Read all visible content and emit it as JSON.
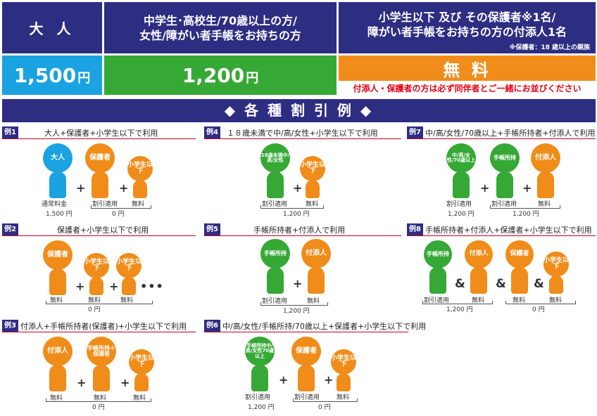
{
  "header": {
    "adult": "大 人",
    "student_line1": "中学生･高校生/70歳以上の方/",
    "student_line2": "女性/障がい者手帳をお持ちの方",
    "child_line1": "小学生以下 及び その保護者※1名/",
    "child_line2": "障がい者手帳をお持ちの方の付添人1名",
    "child_note": "※保護者：18 歳以上の親族"
  },
  "prices": {
    "adult_num": "1,500",
    "adult_unit": "円",
    "student_num": "1,200",
    "student_unit": "円",
    "free": "無 料",
    "free_note": "付添人・保護者の方は必ず同伴者とご一緒にお並びください"
  },
  "banner": "◆ 各 種 割 引 例 ◆",
  "labels": {
    "otona": "大人",
    "hogosha": "保護者",
    "shogakusei": "小学生以下",
    "under18": "18歳未満中/高/女性",
    "chukou70": "中/高/女性/70歳以上",
    "techo": "手帳所持",
    "tsukisoi": "付添人",
    "techo_hogosha": "手帳所持＋保護者",
    "techo_combo": "手帳所持中/高/女性70歳以上",
    "normal_fee": "通常料金",
    "discount": "割引適用",
    "free": "無料",
    "p1500": "1,500 円",
    "p1200": "1,200 円",
    "p0": "0 円",
    "plus": "+",
    "amp": "&",
    "dots": "•••"
  },
  "examples": [
    {
      "tag": "例1",
      "title": "大人+保護者+小学生以下で利用"
    },
    {
      "tag": "例2",
      "title": "保護者+小学生以下で利用"
    },
    {
      "tag": "例3",
      "title": "付添人+手帳所持者(保護者)+小学生以下で利用"
    },
    {
      "tag": "例4",
      "title": "１８歳未満で中/高/女性+小学生以下で利用"
    },
    {
      "tag": "例5",
      "title": "手帳所持者+付添人で利用"
    },
    {
      "tag": "例6",
      "title": "中/高/女性/手帳所持/70歳以上+保護者+小学生以下で利用"
    },
    {
      "tag": "例7",
      "title": "中/高/女性/70歳以上+手帳所持者+付添人で利用"
    },
    {
      "tag": "例8",
      "title": "手帳所持者+付添人+保護者+小学生以下で利用"
    }
  ],
  "colors": {
    "navy": "#2d2d82",
    "blue": "#1aa3e0",
    "green": "#36a835",
    "orange": "#f08c19",
    "red": "#e60012"
  }
}
